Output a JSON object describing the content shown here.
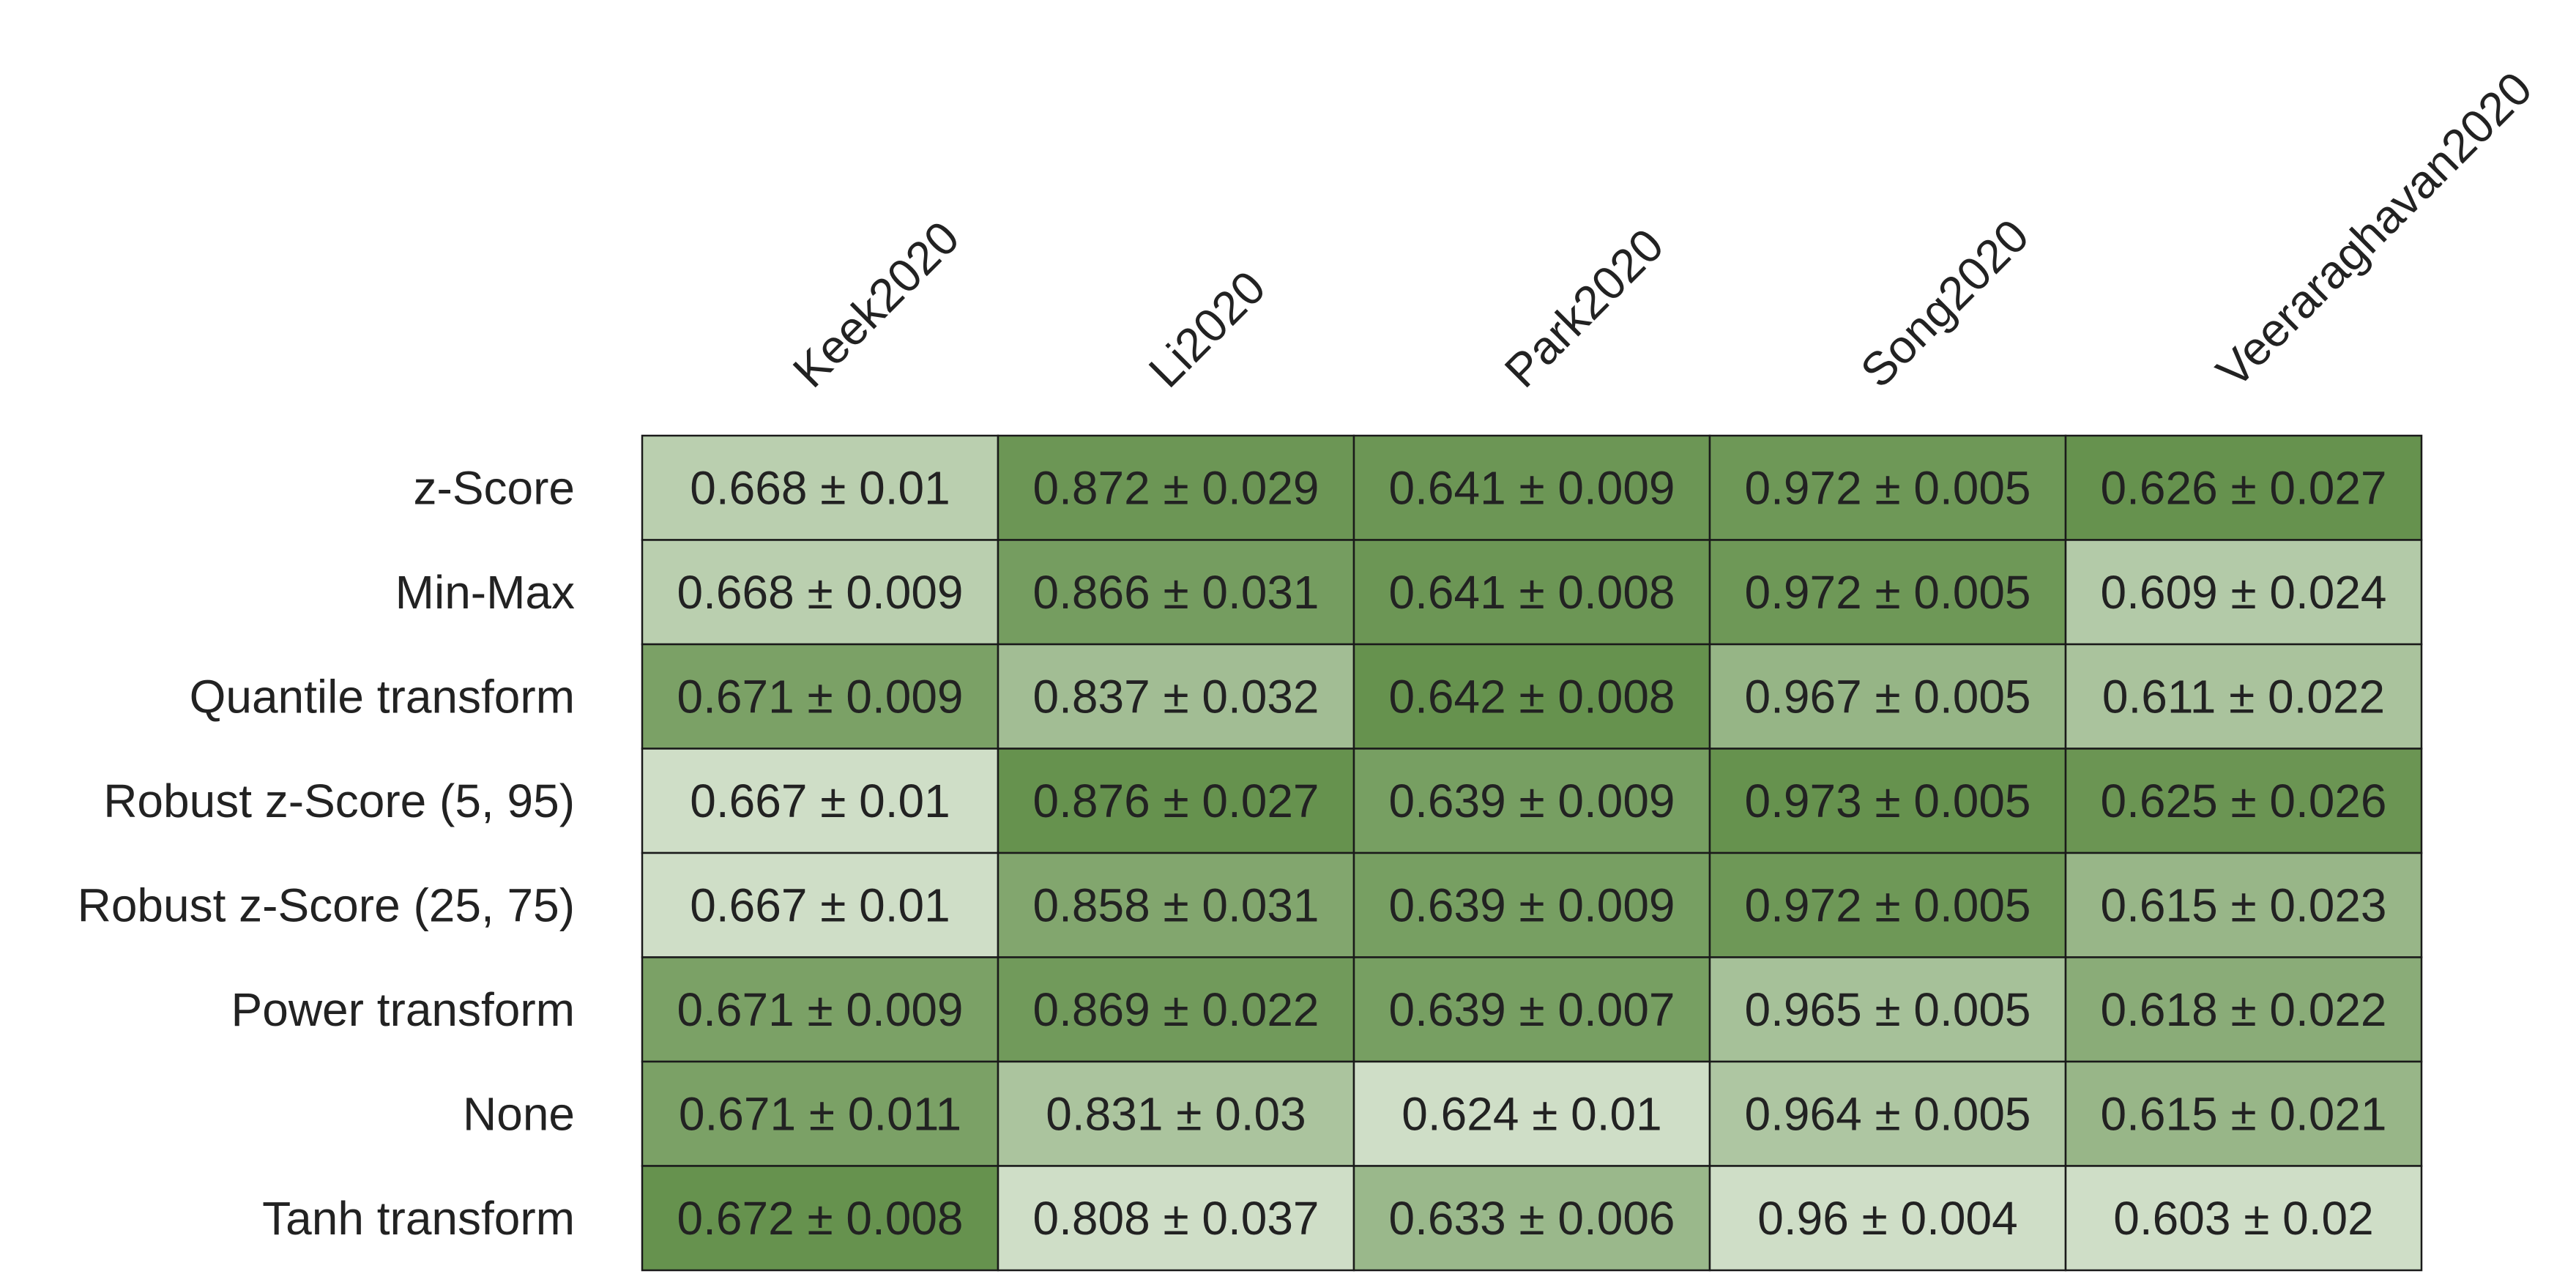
{
  "chart_data": {
    "type": "heatmap",
    "columns": [
      "Keek2020",
      "Li2020",
      "Park2020",
      "Song2020",
      "Veeraraghavan2020"
    ],
    "rows": [
      "z-Score",
      "Min-Max",
      "Quantile transform",
      "Robust z-Score (5, 95)",
      "Robust z-Score (25, 75)",
      "Power transform",
      "None",
      "Tanh transform"
    ],
    "values": [
      [
        0.668,
        0.872,
        0.641,
        0.972,
        0.626
      ],
      [
        0.668,
        0.866,
        0.641,
        0.972,
        0.609
      ],
      [
        0.671,
        0.837,
        0.642,
        0.967,
        0.611
      ],
      [
        0.667,
        0.876,
        0.639,
        0.973,
        0.625
      ],
      [
        0.667,
        0.858,
        0.639,
        0.972,
        0.615
      ],
      [
        0.671,
        0.869,
        0.639,
        0.965,
        0.618
      ],
      [
        0.671,
        0.831,
        0.624,
        0.964,
        0.615
      ],
      [
        0.672,
        0.808,
        0.633,
        0.96,
        0.603
      ]
    ],
    "cell_labels": [
      [
        "0.668 ± 0.01",
        "0.872 ± 0.029",
        "0.641 ± 0.009",
        "0.972 ± 0.005",
        "0.626 ± 0.027"
      ],
      [
        "0.668 ± 0.009",
        "0.866 ± 0.031",
        "0.641 ± 0.008",
        "0.972 ± 0.005",
        "0.609 ± 0.024"
      ],
      [
        "0.671 ± 0.009",
        "0.837 ± 0.032",
        "0.642 ± 0.008",
        "0.967 ± 0.005",
        "0.611 ± 0.022"
      ],
      [
        "0.667 ± 0.01",
        "0.876 ± 0.027",
        "0.639 ± 0.009",
        "0.973 ± 0.005",
        "0.625 ± 0.026"
      ],
      [
        "0.667 ± 0.01",
        "0.858 ± 0.031",
        "0.639 ± 0.009",
        "0.972 ± 0.005",
        "0.615 ± 0.023"
      ],
      [
        "0.671 ± 0.009",
        "0.869 ± 0.022",
        "0.639 ± 0.007",
        "0.965 ± 0.005",
        "0.618 ± 0.022"
      ],
      [
        "0.671 ± 0.011",
        "0.831 ± 0.03",
        "0.624 ± 0.01",
        "0.964 ± 0.005",
        "0.615 ± 0.021"
      ],
      [
        "0.672 ± 0.008",
        "0.808 ± 0.037",
        "0.633 ± 0.006",
        "0.96 ± 0.004",
        "0.603 ± 0.02"
      ]
    ],
    "color_scale": {
      "normalization": "per-column",
      "low_color": "#dde8d8",
      "high_color": "#66924e"
    },
    "grid": true,
    "legend": "none",
    "title": "",
    "xlabel": "",
    "ylabel": ""
  }
}
